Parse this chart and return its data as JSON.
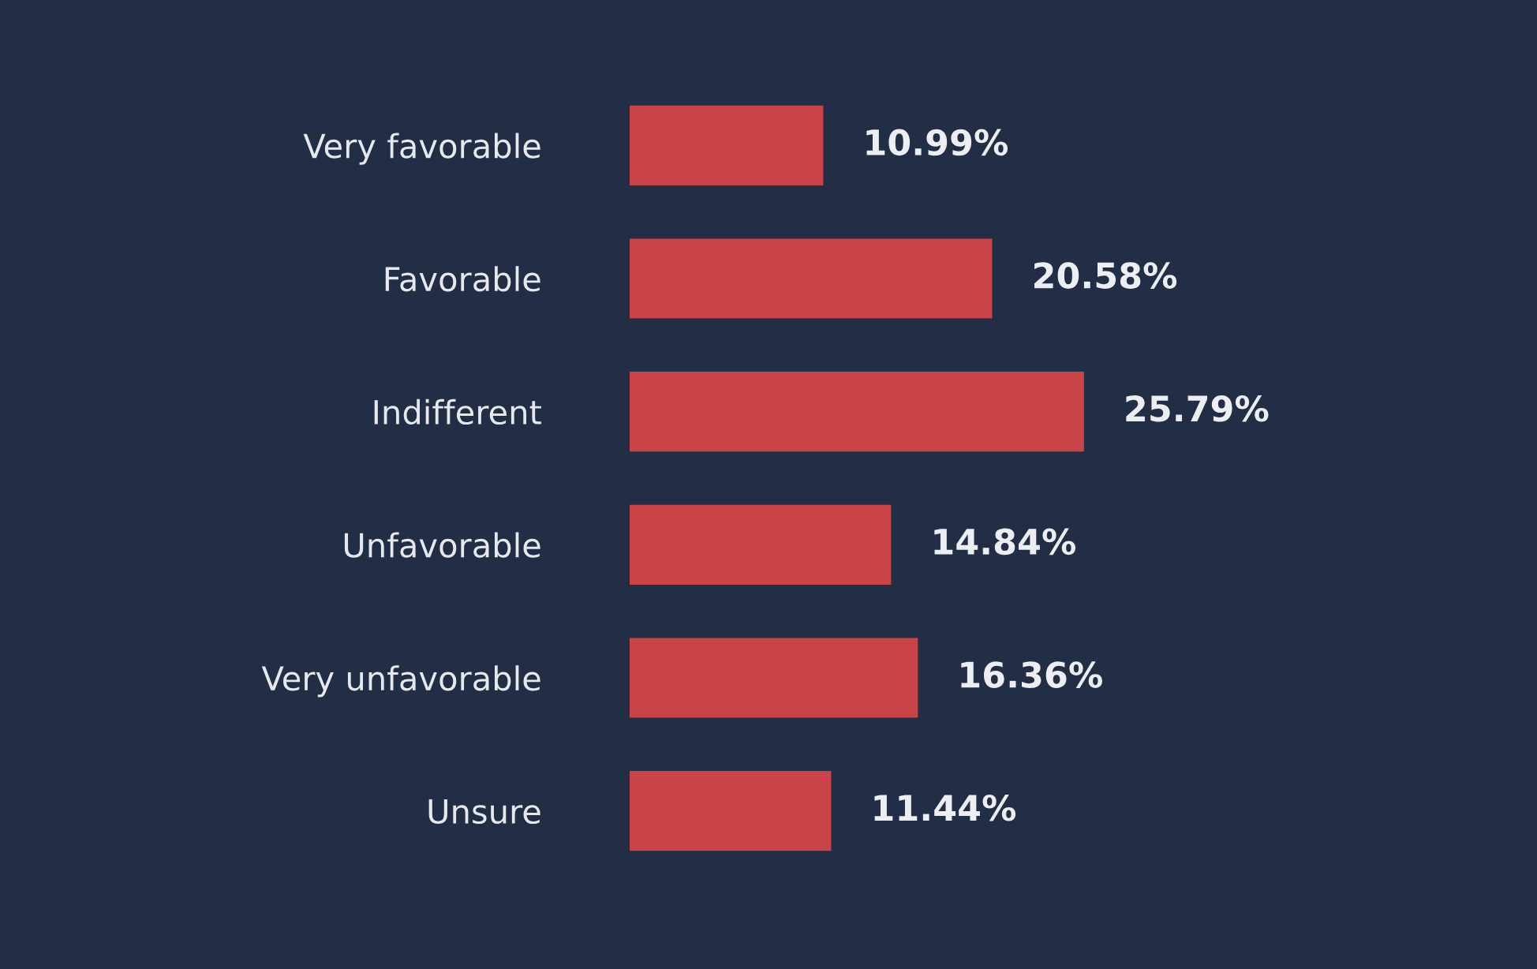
{
  "chart_data": {
    "type": "bar",
    "orientation": "horizontal",
    "categories": [
      "Very favorable",
      "Favorable",
      "Indifferent",
      "Unfavorable",
      "Very unfavorable",
      "Unsure"
    ],
    "values": [
      10.99,
      20.58,
      25.79,
      14.84,
      16.36,
      11.44
    ],
    "value_labels": [
      "10.99%",
      "20.58%",
      "25.79%",
      "14.84%",
      "16.36%",
      "11.44%"
    ],
    "color": "#c94347",
    "grid": false,
    "legend": false
  }
}
